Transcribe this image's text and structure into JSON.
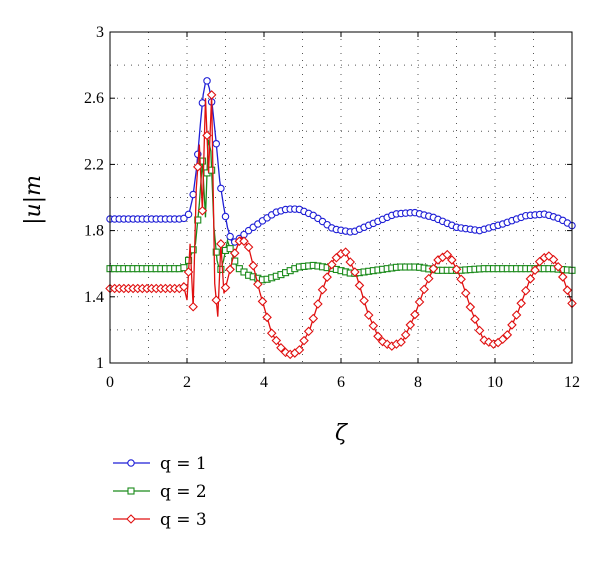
{
  "chart_data": {
    "type": "line",
    "xlabel": "ζ",
    "ylabel": "|u|m",
    "xlim": [
      0,
      12
    ],
    "ylim": [
      1,
      3
    ],
    "xticks": [
      0,
      2,
      4,
      6,
      8,
      10,
      12
    ],
    "xtick_labels": [
      "0",
      "2",
      "4",
      "6",
      "8",
      "10",
      "12"
    ],
    "yticks": [
      1,
      1.4,
      1.8,
      2.2,
      2.6,
      3
    ],
    "ytick_labels": [
      "1",
      "1.4",
      "1.8",
      "2.2",
      "2.6",
      "3"
    ],
    "grid": true,
    "legend_position": "below",
    "series": [
      {
        "name": "q = 1",
        "color": "#1f1fd6",
        "marker": "circle",
        "x": [
          0,
          1,
          1.9,
          2.05,
          2.15,
          2.25,
          2.35,
          2.42,
          2.5,
          2.58,
          2.66,
          2.75,
          2.85,
          2.95,
          3.05,
          3.15,
          3.25,
          3.4,
          3.6,
          3.9,
          4.3,
          4.6,
          4.9,
          5.3,
          5.8,
          6.3,
          6.9,
          7.4,
          7.9,
          8.4,
          9.0,
          9.6,
          10.2,
          10.8,
          11.3,
          11.7,
          12.0
        ],
        "y": [
          1.87,
          1.87,
          1.87,
          1.9,
          2.0,
          2.18,
          2.45,
          2.62,
          2.72,
          2.66,
          2.55,
          2.35,
          2.1,
          1.95,
          1.82,
          1.74,
          1.73,
          1.76,
          1.8,
          1.85,
          1.91,
          1.93,
          1.93,
          1.89,
          1.81,
          1.79,
          1.85,
          1.9,
          1.91,
          1.88,
          1.82,
          1.8,
          1.84,
          1.89,
          1.9,
          1.87,
          1.83
        ]
      },
      {
        "name": "q = 2",
        "color": "#1a8a1a",
        "marker": "square",
        "x": [
          0,
          1,
          1.9,
          2.0,
          2.12,
          2.22,
          2.32,
          2.4,
          2.48,
          2.55,
          2.62,
          2.7,
          2.78,
          2.86,
          2.95,
          3.05,
          3.15,
          3.3,
          3.6,
          4.0,
          4.4,
          4.9,
          5.3,
          5.8,
          6.3,
          6.9,
          7.5,
          8.0,
          8.5,
          9.1,
          9.7,
          10.3,
          10.9,
          11.5,
          12.0
        ],
        "y": [
          1.57,
          1.57,
          1.57,
          1.6,
          1.66,
          1.72,
          1.96,
          2.22,
          1.88,
          2.35,
          2.28,
          1.82,
          1.62,
          1.55,
          1.62,
          1.74,
          1.67,
          1.58,
          1.53,
          1.5,
          1.53,
          1.58,
          1.59,
          1.57,
          1.54,
          1.56,
          1.58,
          1.58,
          1.56,
          1.56,
          1.57,
          1.57,
          1.57,
          1.57,
          1.56
        ]
      },
      {
        "name": "q = 3",
        "color": "#e01010",
        "marker": "diamond",
        "x": [
          0,
          1,
          1.8,
          1.9,
          2.0,
          2.08,
          2.16,
          2.24,
          2.32,
          2.4,
          2.48,
          2.56,
          2.64,
          2.72,
          2.8,
          2.88,
          2.96,
          3.05,
          3.2,
          3.4,
          3.6,
          3.9,
          4.2,
          4.5,
          4.7,
          4.9,
          5.2,
          5.5,
          5.8,
          6.1,
          6.4,
          6.7,
          7.0,
          7.3,
          7.6,
          7.9,
          8.2,
          8.5,
          8.8,
          9.1,
          9.4,
          9.7,
          10.0,
          10.3,
          10.6,
          10.9,
          11.2,
          11.45,
          11.7,
          12.0
        ],
        "y": [
          1.45,
          1.45,
          1.45,
          1.48,
          1.38,
          1.72,
          1.34,
          2.05,
          2.32,
          1.92,
          2.6,
          2.15,
          2.62,
          1.48,
          1.28,
          1.72,
          1.42,
          1.5,
          1.64,
          1.76,
          1.7,
          1.42,
          1.18,
          1.07,
          1.05,
          1.07,
          1.21,
          1.43,
          1.62,
          1.68,
          1.53,
          1.3,
          1.14,
          1.1,
          1.13,
          1.28,
          1.47,
          1.62,
          1.66,
          1.52,
          1.31,
          1.14,
          1.11,
          1.16,
          1.31,
          1.5,
          1.63,
          1.65,
          1.56,
          1.36
        ]
      }
    ]
  }
}
